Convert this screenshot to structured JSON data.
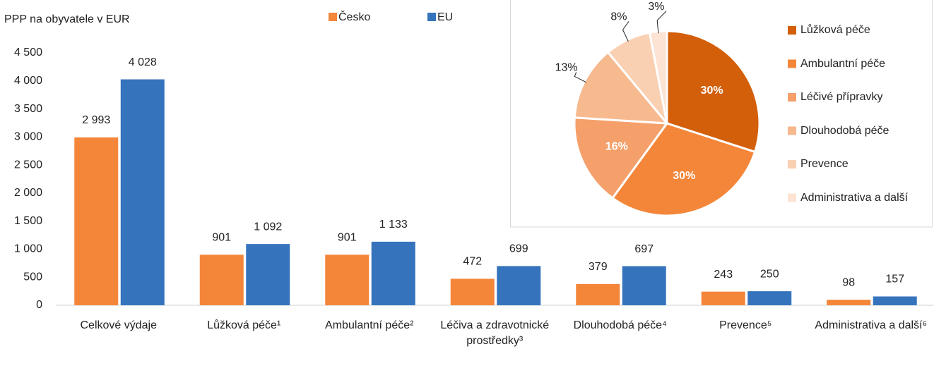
{
  "chart_data": [
    {
      "type": "bar",
      "title": "PPP na obyvatele v EUR",
      "categories": [
        "Celkové výdaje",
        "Lůžková péče¹",
        "Ambulantní péče²",
        "Léčiva a zdravotnické prostředky³",
        "Dlouhodobá péče⁴",
        "Prevence⁵",
        "Administrativa a další⁶"
      ],
      "series": [
        {
          "name": "Česko",
          "color": "#f4863a",
          "values": [
            2993,
            901,
            901,
            472,
            379,
            243,
            98
          ],
          "value_labels": [
            "2 993",
            "901",
            "901",
            "472",
            "379",
            "243",
            "98"
          ]
        },
        {
          "name": "EU",
          "color": "#3574bd",
          "values": [
            4028,
            1092,
            1133,
            699,
            697,
            250,
            157
          ],
          "value_labels": [
            "4 028",
            "1 092",
            "1 133",
            "699",
            "697",
            "250",
            "157"
          ]
        }
      ],
      "ylim": [
        0,
        4500
      ],
      "yticks": [
        0,
        500,
        {
          "value": 1000,
          "label": "1 000"
        },
        {
          "value": 1500,
          "label": "1 500"
        },
        {
          "value": 2000,
          "label": "2 000"
        },
        {
          "value": 2500,
          "label": "2 500"
        },
        {
          "value": 3000,
          "label": "3 000"
        },
        {
          "value": 3500,
          "label": "3 500"
        },
        {
          "value": 4000,
          "label": "4 000"
        },
        {
          "value": 4500,
          "label": "4 500"
        }
      ]
    },
    {
      "type": "pie",
      "categories": [
        "Lůžková péče",
        "Ambulantní péče",
        "Léčivé přípravky",
        "Dlouhodobá péče",
        "Prevence",
        "Administrativa a další"
      ],
      "values": [
        30,
        30,
        16,
        13,
        8,
        3
      ],
      "value_labels": [
        "30%",
        "30%",
        "16%",
        "13%",
        "8%",
        "3%"
      ],
      "colors": [
        "#d35f0a",
        "#f4863a",
        "#f5a06a",
        "#f7b98e",
        "#fad0b2",
        "#fce3d3"
      ]
    }
  ]
}
